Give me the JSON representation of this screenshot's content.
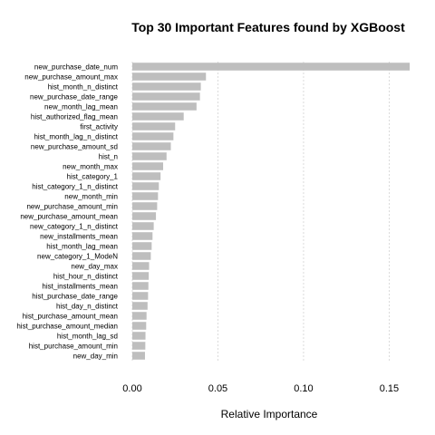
{
  "chart_data": {
    "type": "bar",
    "orientation": "horizontal",
    "title": "Top 30 Important Features found by XGBoost",
    "xlabel": "Relative Importance",
    "ylabel": "",
    "xlim": [
      0,
      0.163
    ],
    "xticks": [
      "0.00",
      "0.05",
      "0.10",
      "0.15"
    ],
    "xtick_values": [
      0,
      0.05,
      0.1,
      0.15
    ],
    "grid": "vertical dashed",
    "bar_color": "#bebebe",
    "grid_color": "#d3d3d3",
    "categories": [
      "new_purchase_date_num",
      "new_purchase_amount_max",
      "hist_month_n_distinct",
      "new_purchase_date_range",
      "new_month_lag_mean",
      "hist_authorized_flag_mean",
      "first_activity",
      "hist_month_lag_n_distinct",
      "new_purchase_amount_sd",
      "hist_n",
      "new_month_max",
      "hist_category_1",
      "hist_category_1_n_distinct",
      "new_month_min",
      "new_purchase_amount_min",
      "new_purchase_amount_mean",
      "new_category_1_n_distinct",
      "new_installments_mean",
      "hist_month_lag_mean",
      "new_category_1_ModeN",
      "new_day_max",
      "hist_hour_n_distinct",
      "hist_installments_mean",
      "hist_purchase_date_range",
      "hist_day_n_distinct",
      "hist_purchase_amount_mean",
      "hist_purchase_amount_median",
      "hist_month_lag_sd",
      "hist_purchase_amount_min",
      "new_day_min"
    ],
    "values": [
      0.162,
      0.043,
      0.04,
      0.0395,
      0.0375,
      0.03,
      0.025,
      0.024,
      0.0225,
      0.02,
      0.018,
      0.0165,
      0.0155,
      0.015,
      0.0145,
      0.0138,
      0.0125,
      0.0118,
      0.0113,
      0.0108,
      0.0098,
      0.0096,
      0.0094,
      0.0092,
      0.0089,
      0.0083,
      0.0081,
      0.0077,
      0.0076,
      0.0074
    ]
  }
}
